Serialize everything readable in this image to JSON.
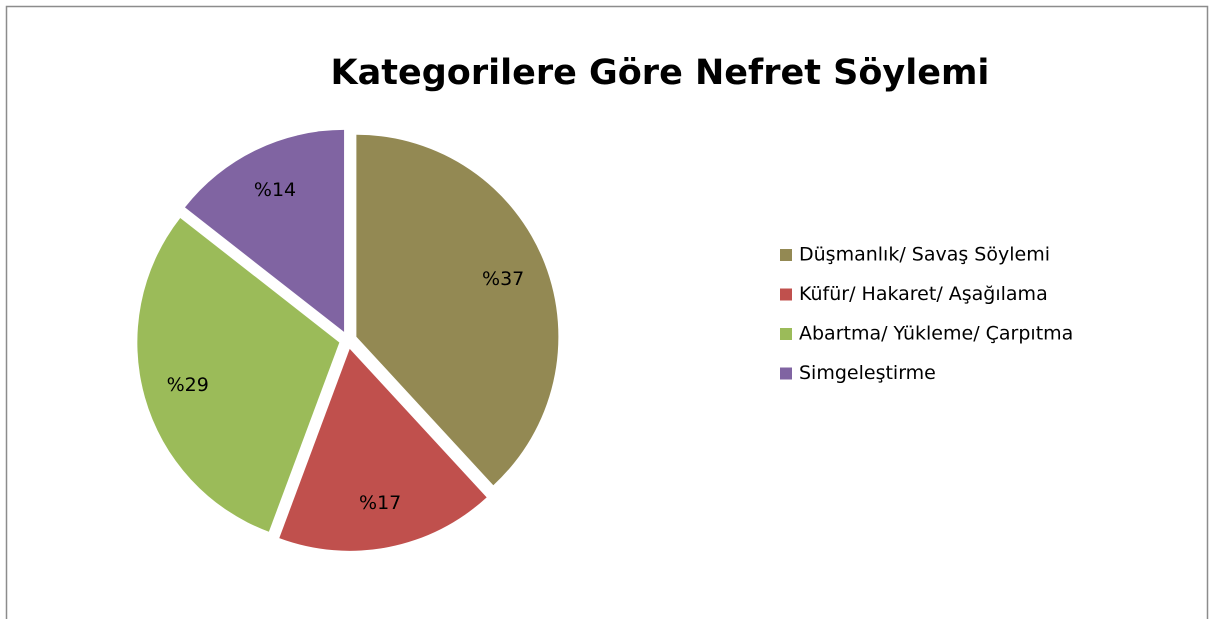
{
  "chart_data": {
    "type": "pie",
    "title": "Kategorilere Göre Nefret Söylemi",
    "categories": [
      "Düşmanlık/ Savaş Söylemi",
      "Küfür/ Hakaret/ Aşağılama",
      "Abartma/ Yükleme/ Çarpıtma",
      "Simgeleştirme"
    ],
    "values": [
      37,
      17,
      29,
      14
    ],
    "value_labels": [
      "%37",
      "%17",
      "%29",
      "%14"
    ],
    "colors": [
      "#938953",
      "#c0504d",
      "#9bbb59",
      "#8064a2"
    ],
    "legend": "right"
  }
}
